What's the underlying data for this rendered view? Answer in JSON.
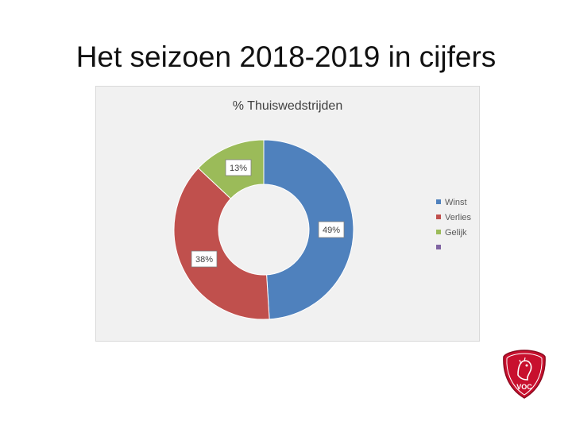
{
  "slide": {
    "title": "Het seizoen 2018-2019 in cijfers"
  },
  "chart_data": {
    "type": "pie",
    "style": "donut",
    "title": "% Thuiswedstrijden",
    "categories": [
      "Winst",
      "Verlies",
      "Gelijk",
      ""
    ],
    "values": [
      49,
      38,
      13,
      0
    ],
    "data_labels": [
      "49%",
      "38%",
      "13%",
      ""
    ],
    "colors": [
      "#4f81bd",
      "#c0504d",
      "#9bbb59",
      "#8064a2"
    ],
    "legend_position": "right"
  },
  "logo": {
    "text": "VOC"
  }
}
